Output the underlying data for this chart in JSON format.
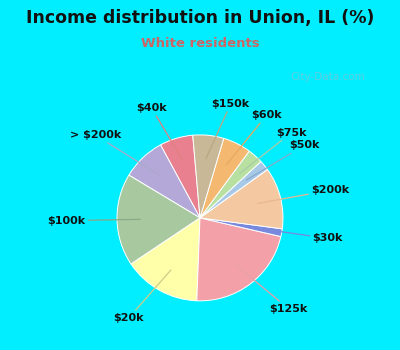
{
  "title": "Income distribution in Union, IL (%)",
  "subtitle": "White residents",
  "title_color": "#111111",
  "subtitle_color": "#cc6666",
  "bg_cyan": "#00eeff",
  "bg_inner_color": "#dff5ee",
  "watermark": "City-Data.com",
  "labels": [
    "$40k",
    "> $200k",
    "$100k",
    "$20k",
    "$125k",
    "$30k",
    "$200k",
    "$50k",
    "$75k",
    "$60k",
    "$150k"
  ],
  "values": [
    6.5,
    8.5,
    18.0,
    15.0,
    22.0,
    1.5,
    12.0,
    2.0,
    3.0,
    5.5,
    6.0
  ],
  "colors": [
    "#e88090",
    "#b3a8d8",
    "#a8c8a0",
    "#ffffaa",
    "#f4a0a8",
    "#7788dd",
    "#f4c8a0",
    "#a8c8e8",
    "#b8e0a0",
    "#f4b870",
    "#c8b898"
  ],
  "label_line_colors": [
    "#e08080",
    "#aaaacc",
    "#88aa88",
    "#cccc88",
    "#e8a0a8",
    "#7788dd",
    "#e8b890",
    "#88aacc",
    "#aaccaa",
    "#e8a860",
    "#b8a880"
  ],
  "startangle": 95,
  "label_fontsize": 8.0,
  "title_fontsize": 12.5,
  "subtitle_fontsize": 9.5
}
